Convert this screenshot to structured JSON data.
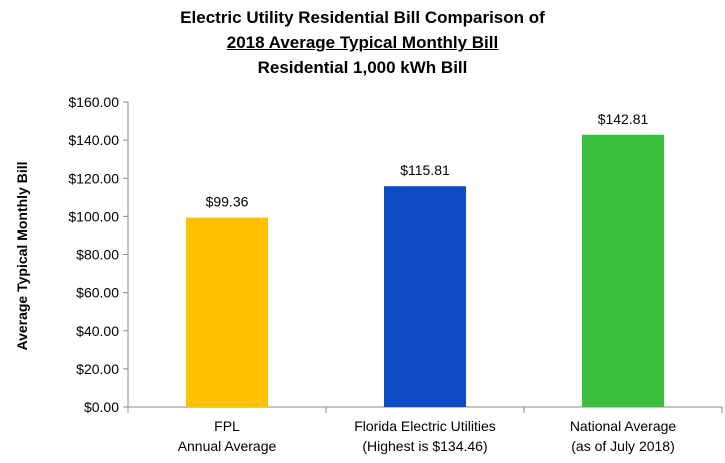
{
  "chart_data": {
    "type": "bar",
    "title_lines": [
      "Electric Utility Residential Bill Comparison of",
      "2018 Average Typical Monthly Bill",
      "Residential 1,000 kWh Bill"
    ],
    "xlabel": "",
    "ylabel": "Average Typical Monthly Bill",
    "ylim": [
      0,
      160
    ],
    "yticks": [
      0,
      20,
      40,
      60,
      80,
      100,
      120,
      140,
      160
    ],
    "ytick_labels": [
      "$0.00",
      "$20.00",
      "$40.00",
      "$60.00",
      "$80.00",
      "$100.00",
      "$120.00",
      "$140.00",
      "$160.00"
    ],
    "categories": [
      [
        "FPL",
        "Annual Average"
      ],
      [
        "Florida Electric Utilities",
        "(Highest is $134.46)"
      ],
      [
        "National Average",
        "(as of July 2018)"
      ]
    ],
    "values": [
      99.36,
      115.81,
      142.81
    ],
    "data_labels": [
      "$99.36",
      "$115.81",
      "$142.81"
    ],
    "colors": [
      "#FFC000",
      "#0E4CC6",
      "#3BBF3F"
    ],
    "grid": false
  }
}
